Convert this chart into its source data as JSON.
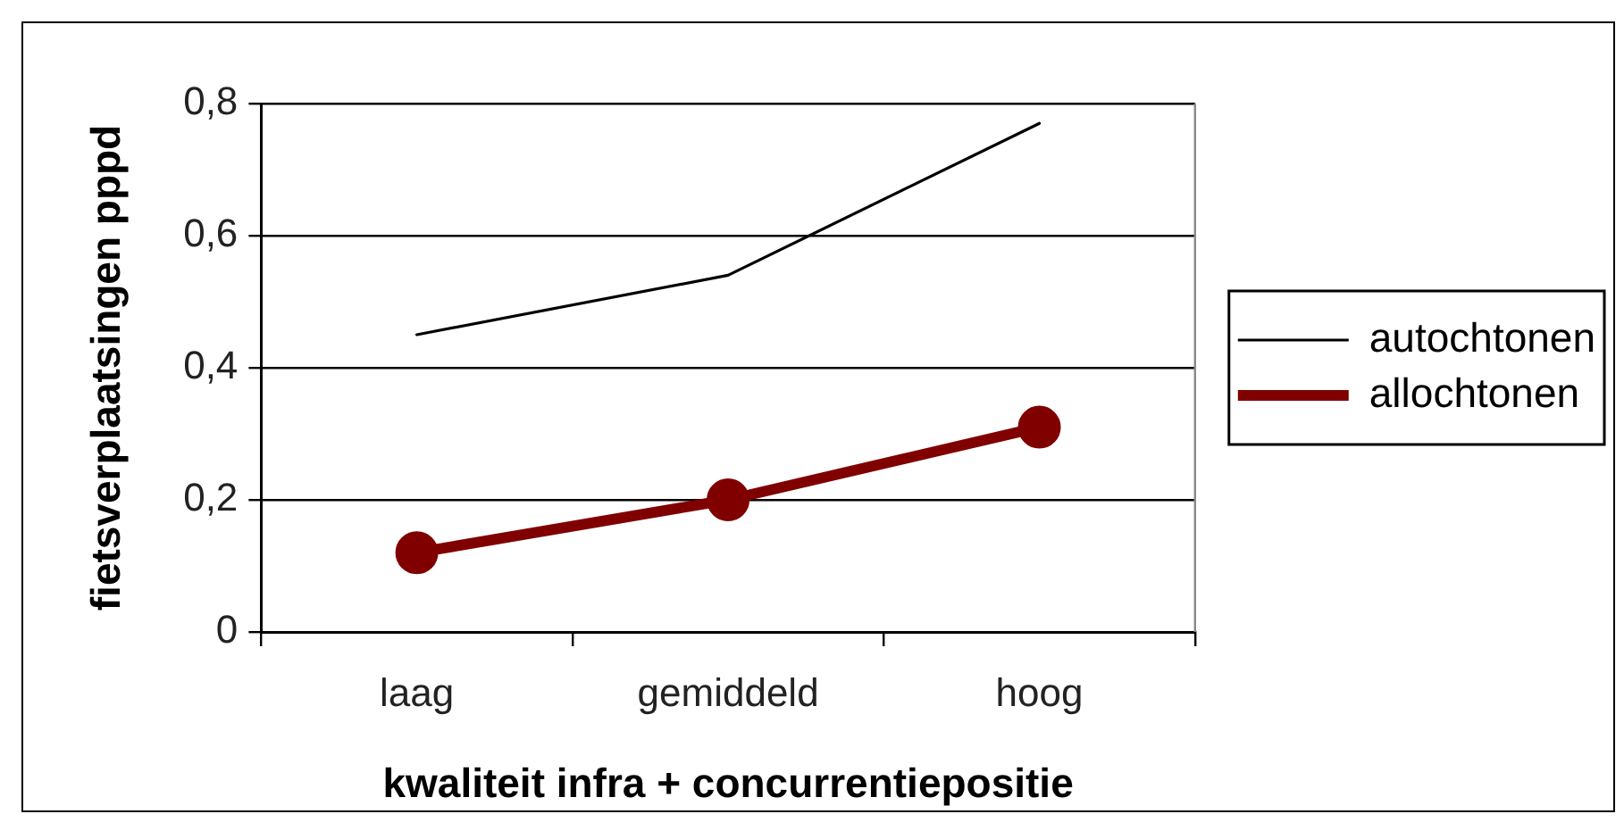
{
  "chart_data": {
    "type": "line",
    "xlabel": "kwaliteit infra + concurrentiepositie",
    "ylabel": "fietsverplaatsingen pppd",
    "categories": [
      "laag",
      "gemiddeld",
      "hoog"
    ],
    "series": [
      {
        "name": "autochtonen",
        "color": "#000000",
        "values": [
          0.45,
          0.54,
          0.77
        ],
        "marker": "none"
      },
      {
        "name": "allochtonen",
        "color": "#800000",
        "values": [
          0.12,
          0.2,
          0.31
        ],
        "marker": "circle"
      }
    ],
    "ylim": [
      0,
      0.8
    ],
    "yticks": [
      0,
      {
        "value": 0.2,
        "label": "0,2"
      },
      {
        "value": 0.4,
        "label": "0,4"
      },
      {
        "value": 0.6,
        "label": "0,6"
      },
      {
        "value": 0.8,
        "label": "0,8"
      }
    ],
    "grid": "y",
    "legend": "right"
  }
}
